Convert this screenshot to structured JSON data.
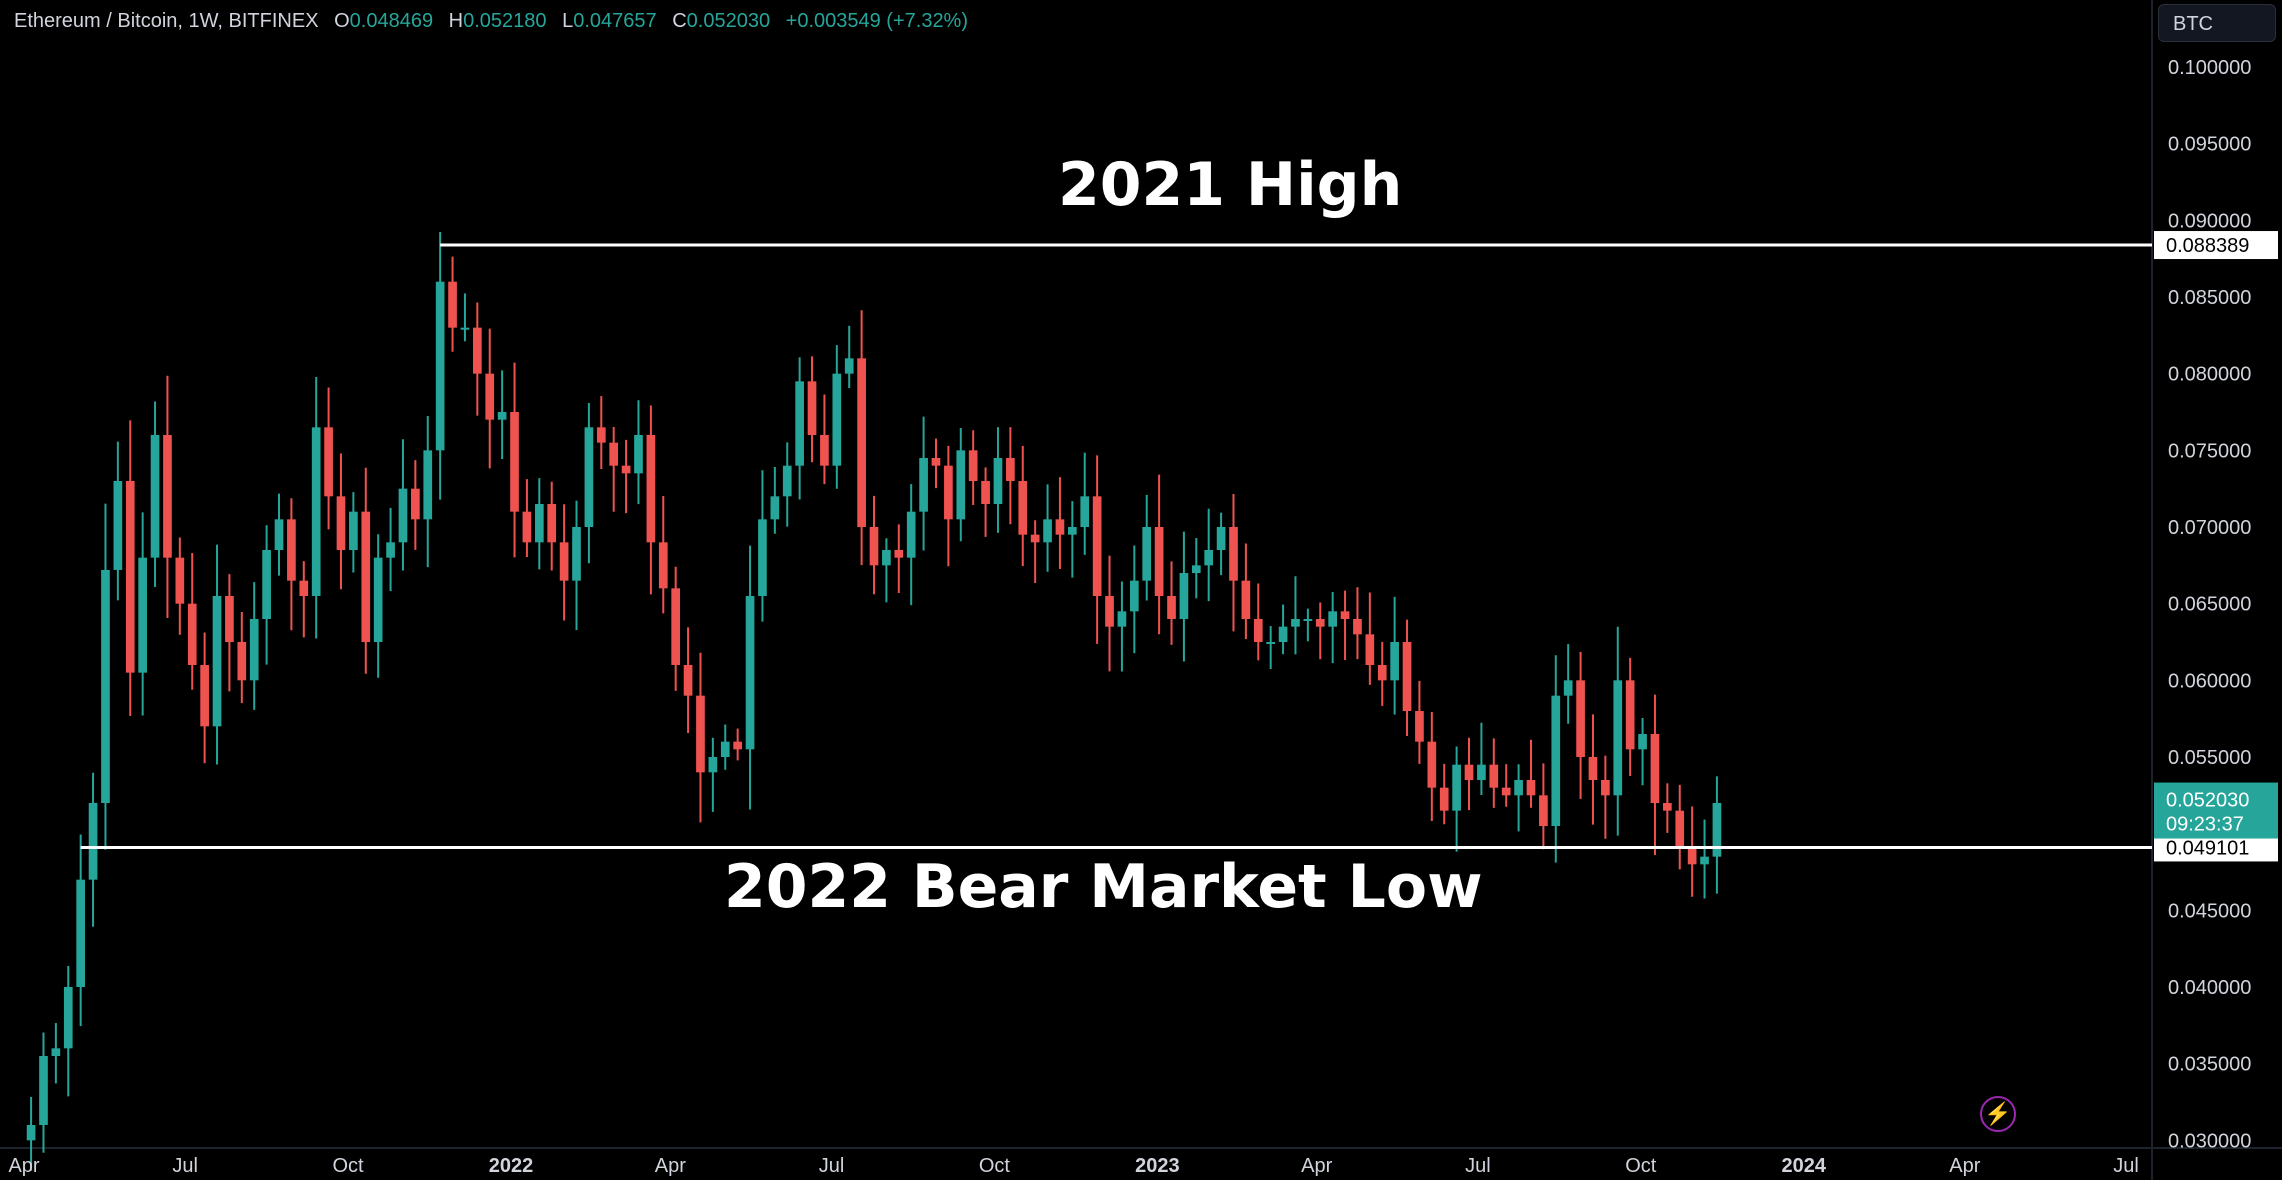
{
  "header": {
    "symbol": "Ethereum / Bitcoin, 1W, BITFINEX",
    "open_label": "O",
    "open": "0.048469",
    "high_label": "H",
    "high": "0.052180",
    "low_label": "L",
    "low": "0.047657",
    "close_label": "C",
    "close": "0.052030",
    "change": "+0.003549 (+7.32%)"
  },
  "currency_button": {
    "label": "BTC"
  },
  "annotations": {
    "high_label": "2021 High",
    "low_label": "2022 Bear Market Low",
    "high_value": "0.088389",
    "low_value": "0.049101"
  },
  "price_badge": {
    "value": "0.052030",
    "countdown": "09:23:37"
  },
  "colors": {
    "up": "#26a69a",
    "down": "#ef5350",
    "background": "#000000",
    "text": "#d1d4dc",
    "level_line": "#ffffff",
    "badge": "#26a69a"
  },
  "icons": {
    "bolt": "lightning-bolt-icon"
  },
  "chart_data": {
    "type": "candlestick",
    "timeframe": "1W",
    "exchange": "BITFINEX",
    "x_start": "2021-04-05",
    "x_end": "2024-04-29",
    "x_ticks": [
      {
        "date": "2021-04-01",
        "label": "Apr"
      },
      {
        "date": "2021-07-01",
        "label": "Jul"
      },
      {
        "date": "2021-10-01",
        "label": "Oct"
      },
      {
        "date": "2022-01-01",
        "label": "2022"
      },
      {
        "date": "2022-04-01",
        "label": "Apr"
      },
      {
        "date": "2022-07-01",
        "label": "Jul"
      },
      {
        "date": "2022-10-01",
        "label": "Oct"
      },
      {
        "date": "2023-01-01",
        "label": "2023"
      },
      {
        "date": "2023-04-01",
        "label": "Apr"
      },
      {
        "date": "2023-07-01",
        "label": "Jul"
      },
      {
        "date": "2023-10-01",
        "label": "Oct"
      },
      {
        "date": "2024-01-01",
        "label": "2024"
      },
      {
        "date": "2024-04-01",
        "label": "Apr"
      },
      {
        "date": "2024-07-01",
        "label": "Jul"
      }
    ],
    "y_ticks": [
      "0.100000",
      "0.095000",
      "0.090000",
      "0.085000",
      "0.080000",
      "0.075000",
      "0.070000",
      "0.065000",
      "0.060000",
      "0.055000",
      "0.050000",
      "0.045000",
      "0.040000",
      "0.035000",
      "0.030000"
    ],
    "ylim": [
      0.0295,
      0.1015
    ],
    "levels": [
      {
        "name": "2021 High",
        "value": 0.088389,
        "from_date": "2021-11-22"
      },
      {
        "name": "2022 Bear Market Low",
        "value": 0.049101,
        "from_date": "2021-05-03"
      }
    ],
    "closes": [
      0.031,
      0.0355,
      0.036,
      0.04,
      0.047,
      0.052,
      0.0672,
      0.073,
      0.0605,
      0.068,
      0.076,
      0.068,
      0.065,
      0.061,
      0.057,
      0.0655,
      0.0625,
      0.06,
      0.064,
      0.0685,
      0.0705,
      0.0665,
      0.0655,
      0.0765,
      0.072,
      0.0685,
      0.071,
      0.0625,
      0.068,
      0.069,
      0.0725,
      0.0705,
      0.075,
      0.086,
      0.083,
      0.083,
      0.08,
      0.077,
      0.0775,
      0.071,
      0.069,
      0.0715,
      0.069,
      0.0665,
      0.07,
      0.0765,
      0.0755,
      0.074,
      0.0735,
      0.076,
      0.069,
      0.066,
      0.061,
      0.059,
      0.054,
      0.055,
      0.056,
      0.0555,
      0.0655,
      0.0705,
      0.072,
      0.074,
      0.0795,
      0.076,
      0.074,
      0.08,
      0.081,
      0.07,
      0.0675,
      0.0685,
      0.068,
      0.071,
      0.0745,
      0.074,
      0.0705,
      0.075,
      0.073,
      0.0715,
      0.0745,
      0.073,
      0.0695,
      0.069,
      0.0705,
      0.0695,
      0.07,
      0.072,
      0.0655,
      0.0635,
      0.0645,
      0.0665,
      0.07,
      0.0655,
      0.064,
      0.067,
      0.0675,
      0.0685,
      0.07,
      0.0665,
      0.064,
      0.0625,
      0.0625,
      0.0635,
      0.064,
      0.064,
      0.0635,
      0.0645,
      0.064,
      0.063,
      0.061,
      0.06,
      0.0625,
      0.058,
      0.056,
      0.053,
      0.0515,
      0.0545,
      0.0535,
      0.0545,
      0.053,
      0.0525,
      0.0535,
      0.0525,
      0.0505,
      0.059,
      0.06,
      0.055,
      0.0535,
      0.0525,
      0.06,
      0.0555,
      0.0565,
      0.052,
      0.0515,
      0.049,
      0.048,
      0.0485,
      0.052
    ]
  }
}
